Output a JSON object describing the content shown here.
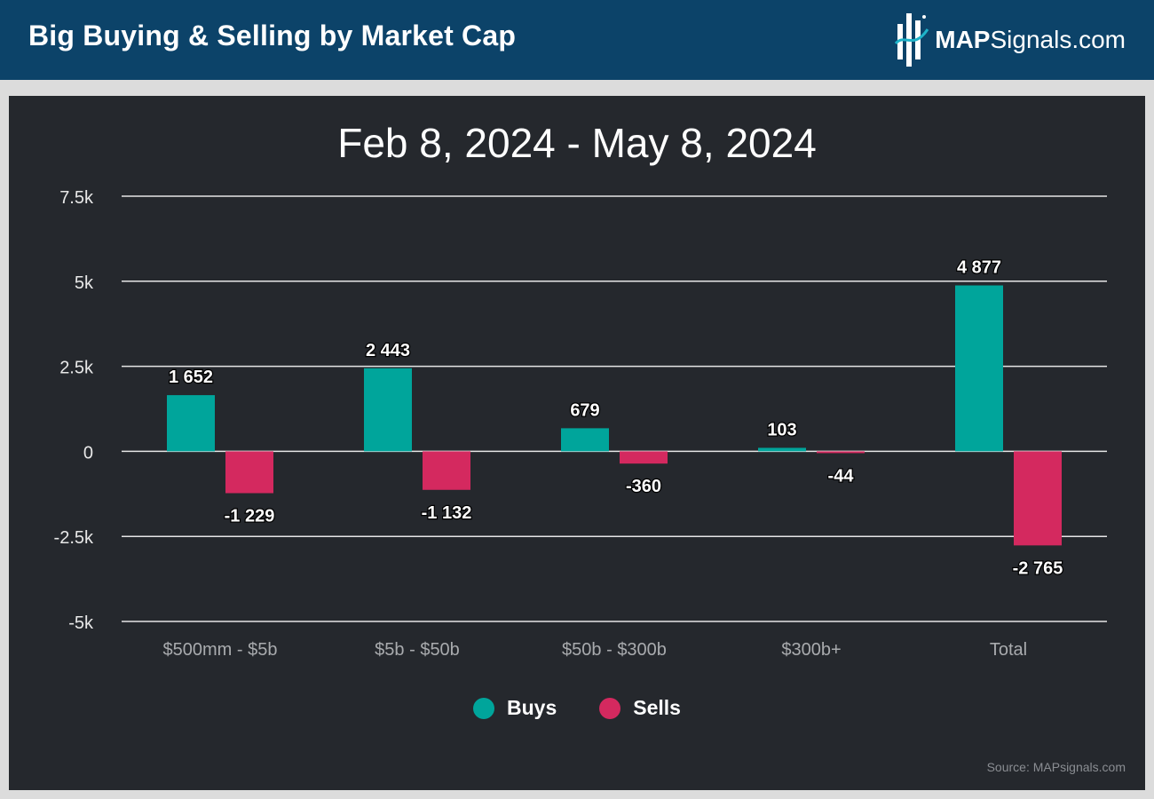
{
  "header": {
    "title": "Big Buying & Selling by Market Cap",
    "logo_bold": "MAP",
    "logo_rest": "Signals.com"
  },
  "chart_data": {
    "type": "bar",
    "title": "Feb 8, 2024 - May 8, 2024",
    "categories": [
      "$500mm - $5b",
      "$5b - $50b",
      "$50b - $300b",
      "$300b+",
      "Total"
    ],
    "series": [
      {
        "name": "Buys",
        "values": [
          1652,
          2443,
          679,
          103,
          4877
        ],
        "labels": [
          "1 652",
          "2 443",
          "679",
          "103",
          "4 877"
        ],
        "color": "#00a59b"
      },
      {
        "name": "Sells",
        "values": [
          -1229,
          -1132,
          -360,
          -44,
          -2765
        ],
        "labels": [
          "-1 229",
          "-1 132",
          "-360",
          "-44",
          "-2 765"
        ],
        "color": "#d4295f"
      }
    ],
    "yticks": [
      7500,
      5000,
      2500,
      0,
      -2500,
      -5000
    ],
    "ytick_labels": [
      "7.5k",
      "5k",
      "2.5k",
      "0",
      "-2.5k",
      "-5k"
    ],
    "ylim": [
      -5000,
      7500
    ],
    "grid": true,
    "legend": "bottom-center"
  },
  "source": "Source: MAPsignals.com"
}
